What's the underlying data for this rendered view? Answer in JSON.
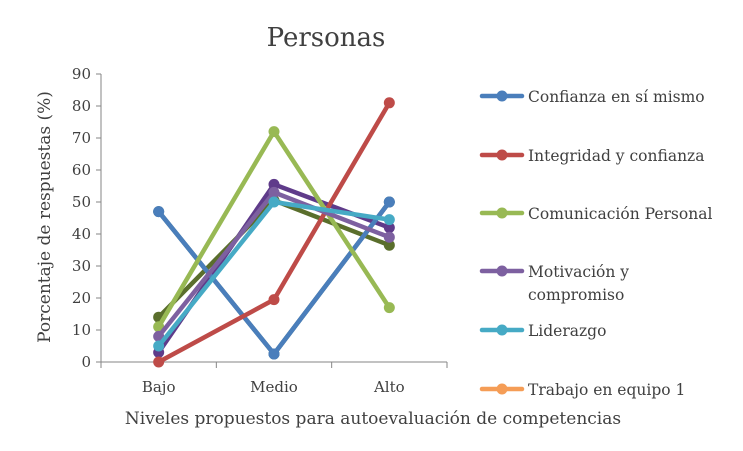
{
  "chart_data": {
    "type": "line",
    "title": "Personas",
    "xlabel": "Niveles propuestos para autoevaluación de competencias",
    "ylabel": "Porcentaje de respuestas (%)",
    "categories": [
      "Bajo",
      "Medio",
      "Alto"
    ],
    "ylim": [
      0,
      90
    ],
    "yticks": [
      "0",
      "10",
      "20",
      "30",
      "40",
      "50",
      "60",
      "70",
      "80",
      "90"
    ],
    "grid": false,
    "legend_position": "right",
    "series": [
      {
        "name": "Confianza en sí mismo",
        "values": [
          47,
          2.5,
          50
        ],
        "color": "#4a7ebb"
      },
      {
        "name": "Integridad y confianza",
        "values": [
          0,
          19.5,
          81
        ],
        "color": "#be4b48"
      },
      {
        "name": "Comunicación Personal",
        "values": [
          11,
          72,
          17
        ],
        "color": "#98b954"
      },
      {
        "name": "Motivación y compromiso",
        "values": [
          8,
          53,
          39
        ],
        "color": "#7d60a0"
      },
      {
        "name": "Liderazgo",
        "values": [
          5,
          50,
          44.5
        ],
        "color": "#46aac5"
      },
      {
        "name": "Trabajo en equipo 1",
        "values": [
          null,
          null,
          null
        ],
        "color": "#f59d56"
      }
    ],
    "extra_lines": [
      {
        "values": [
          47,
          2.5,
          50
        ],
        "color": "#215968"
      },
      {
        "values": [
          3,
          55.5,
          42
        ],
        "color": "#5f3b8a"
      },
      {
        "values": [
          14,
          50.5,
          36.5
        ],
        "color": "#5a6e2c"
      }
    ]
  }
}
